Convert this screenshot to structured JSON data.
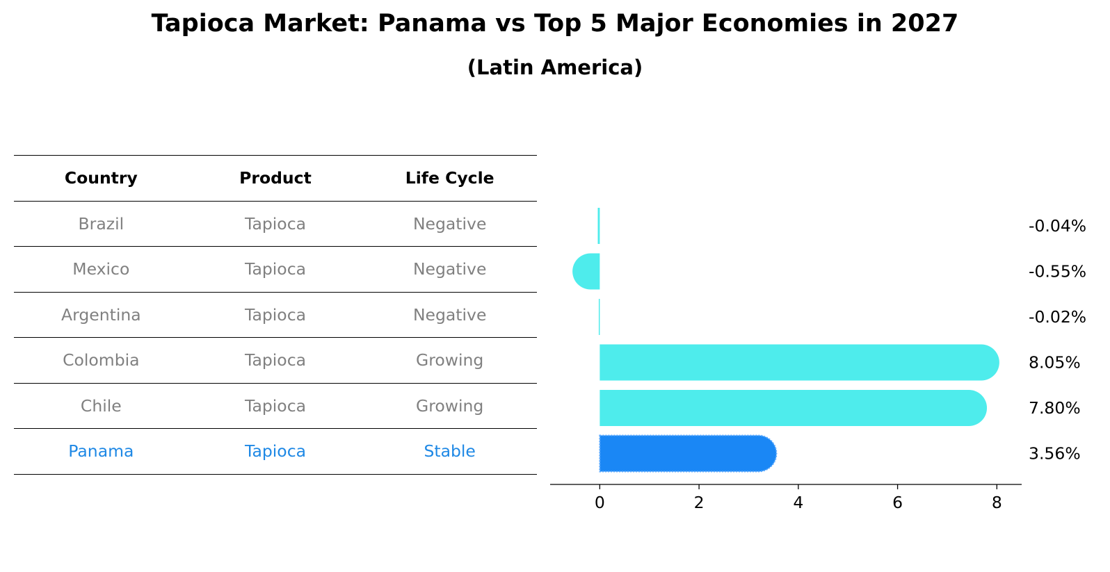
{
  "title": "Tapioca Market: Panama vs Top 5 Major Economies in 2027",
  "subtitle": "(Latin America)",
  "table": {
    "headers": [
      "Country",
      "Product",
      "Life Cycle"
    ],
    "rows": [
      [
        "Brazil",
        "Tapioca",
        "Negative"
      ],
      [
        "Mexico",
        "Tapioca",
        "Negative"
      ],
      [
        "Argentina",
        "Tapioca",
        "Negative"
      ],
      [
        "Colombia",
        "Tapioca",
        "Growing"
      ],
      [
        "Chile",
        "Tapioca",
        "Growing"
      ],
      [
        "Panama",
        "Tapioca",
        "Stable"
      ]
    ],
    "highlight_row": 5,
    "text_color": "#808080",
    "highlight_color": "#1e88e5"
  },
  "chart_data": {
    "type": "bar",
    "orientation": "horizontal",
    "categories": [
      "Brazil",
      "Mexico",
      "Argentina",
      "Colombia",
      "Chile",
      "Panama"
    ],
    "values": [
      -0.04,
      -0.55,
      -0.02,
      8.05,
      7.8,
      3.56
    ],
    "value_labels": [
      "-0.04%",
      "-0.55%",
      "-0.02%",
      "8.05%",
      "7.80%",
      "3.56%"
    ],
    "xlim": [
      -1,
      8.5
    ],
    "xticks": [
      0,
      2,
      4,
      6,
      8
    ],
    "grid": false,
    "colors": {
      "default": "#4eecec",
      "highlight": "#1a87f5"
    },
    "highlight_index": 5
  }
}
